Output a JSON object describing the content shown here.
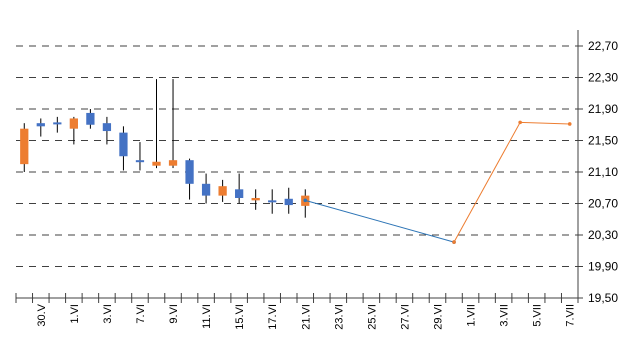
{
  "chart_data": {
    "type": "candlestick",
    "title": "",
    "xlabel": "",
    "ylabel": "",
    "ylim": [
      19.5,
      22.7
    ],
    "y_ticks": [
      {
        "value": 22.7,
        "label": "22,70"
      },
      {
        "value": 22.3,
        "label": "22,30"
      },
      {
        "value": 21.9,
        "label": "21,90"
      },
      {
        "value": 21.5,
        "label": "21,50"
      },
      {
        "value": 21.1,
        "label": "21,10"
      },
      {
        "value": 20.7,
        "label": "20,70"
      },
      {
        "value": 20.3,
        "label": "20,30"
      },
      {
        "value": 19.9,
        "label": "19,90"
      },
      {
        "value": 19.5,
        "label": "19,50"
      }
    ],
    "y_axis_side": "right",
    "gridlines": "horizontal dashed",
    "x_tick_labels": [
      "30.V",
      "1.VI",
      "3.VI",
      "7.VI",
      "9.VI",
      "11.VI",
      "15.VI",
      "17.VI",
      "21.VI",
      "23.VI",
      "25.VI",
      "27.VI",
      "29.VI",
      "1.VII",
      "3.VII",
      "5.VII",
      "7.VII"
    ],
    "x_category_count": 34,
    "x_label_every": 2,
    "candles": [
      {
        "open": 21.65,
        "close": 21.2,
        "high": 21.72,
        "low": 21.1
      },
      {
        "open": 21.68,
        "close": 21.72,
        "high": 21.78,
        "low": 21.55
      },
      {
        "open": 21.73,
        "close": 21.73,
        "high": 21.8,
        "low": 21.6
      },
      {
        "open": 21.78,
        "close": 21.65,
        "high": 21.8,
        "low": 21.45
      },
      {
        "open": 21.7,
        "close": 21.85,
        "high": 21.9,
        "low": 21.65
      },
      {
        "open": 21.62,
        "close": 21.72,
        "high": 21.8,
        "low": 21.45
      },
      {
        "open": 21.3,
        "close": 21.6,
        "high": 21.68,
        "low": 21.12
      },
      {
        "open": 21.25,
        "close": 21.25,
        "high": 21.48,
        "low": 21.12
      },
      {
        "open": 21.23,
        "close": 21.18,
        "high": 22.28,
        "low": 21.15
      },
      {
        "open": 21.25,
        "close": 21.18,
        "high": 22.28,
        "low": 21.15
      },
      {
        "open": 20.95,
        "close": 21.25,
        "high": 21.27,
        "low": 20.75
      },
      {
        "open": 20.8,
        "close": 20.95,
        "high": 21.08,
        "low": 20.7
      },
      {
        "open": 20.92,
        "close": 20.8,
        "high": 21.0,
        "low": 20.72
      },
      {
        "open": 20.77,
        "close": 20.88,
        "high": 21.08,
        "low": 20.7
      },
      {
        "open": 20.77,
        "close": 20.74,
        "high": 20.88,
        "low": 20.62
      },
      {
        "open": 20.74,
        "close": 20.74,
        "high": 20.88,
        "low": 20.57
      },
      {
        "open": 20.68,
        "close": 20.76,
        "high": 20.9,
        "low": 20.57
      },
      {
        "open": 20.8,
        "close": 20.67,
        "high": 20.88,
        "low": 20.52
      }
    ],
    "series": [
      {
        "values": [
          [
            17,
            20.74
          ],
          [
            26,
            20.21
          ]
        ],
        "color": "#2e75b6"
      },
      {
        "values": [
          [
            26,
            20.21
          ],
          [
            30,
            21.73
          ],
          [
            33,
            21.71
          ]
        ],
        "color": "#ed7d31"
      }
    ],
    "colors": {
      "up": "#4472c4",
      "down": "#ed7d31"
    }
  }
}
